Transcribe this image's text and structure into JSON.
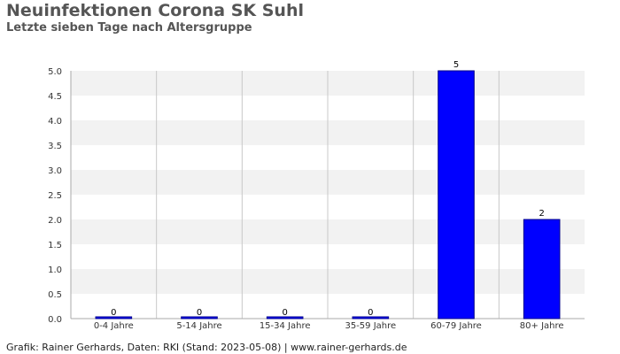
{
  "title": "Neuinfektionen Corona SK Suhl",
  "subtitle": "Letzte sieben Tage nach Altersgruppe",
  "footer": "Grafik: Rainer Gerhards, Daten: RKI (Stand: 2023-05-08) | www.rainer-gerhards.de",
  "chart_data": {
    "type": "bar",
    "categories": [
      "0-4 Jahre",
      "5-14 Jahre",
      "15-34 Jahre",
      "35-59 Jahre",
      "60-79 Jahre",
      "80+ Jahre"
    ],
    "values": [
      0,
      0,
      0,
      0,
      5,
      2
    ],
    "value_labels": [
      "0",
      "0",
      "0",
      "0",
      "5",
      "2"
    ],
    "ylim": [
      0,
      5.0
    ],
    "yticks": [
      "0.0",
      "0.5",
      "1.0",
      "1.5",
      "2.0",
      "2.5",
      "3.0",
      "3.5",
      "4.0",
      "4.5",
      "5.0"
    ],
    "xlabel": "",
    "ylabel": "",
    "grid": true,
    "bar_color": "#0000ff",
    "bar_border_color": "#00008b",
    "band_color": "#f2f2f2",
    "gridline_color": "#c8c8c8"
  }
}
